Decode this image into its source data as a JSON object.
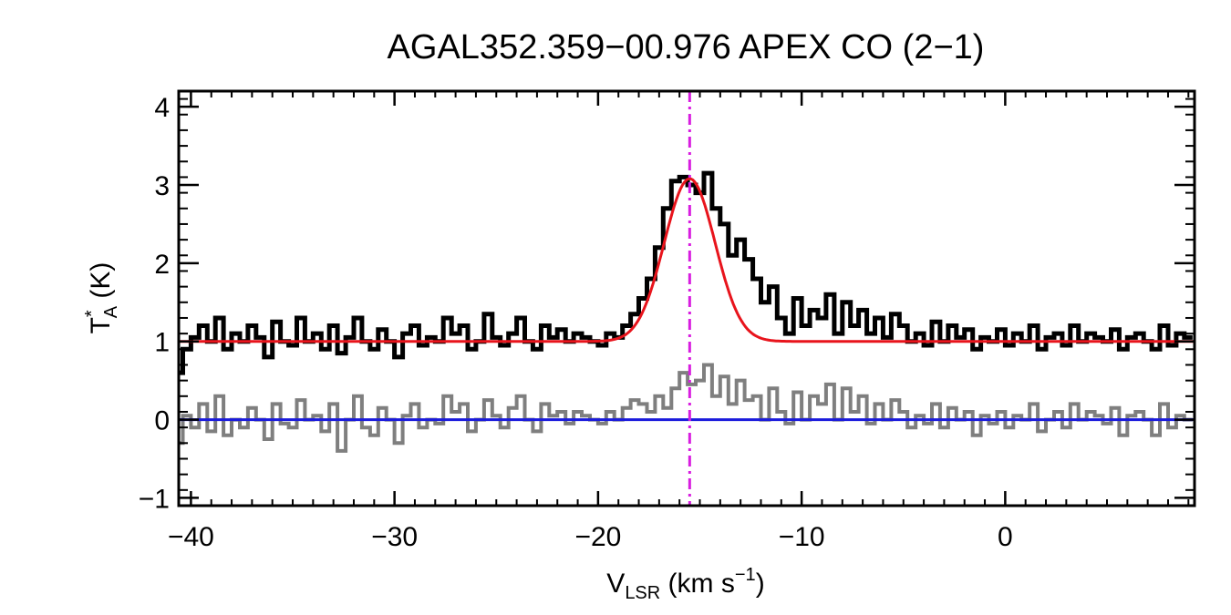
{
  "chart_data": {
    "type": "line",
    "title": "AGAL352.359−00.976  APEX CO (2−1)",
    "xlabel": {
      "main": "V",
      "sub": "LSR",
      "rest": " (km s",
      "sup": "−1",
      "close": ")"
    },
    "ylabel": {
      "main": "T",
      "sup": "*",
      "sub": "A",
      "rest": " (K)"
    },
    "xlim": [
      -40.6,
      9.3
    ],
    "ylim": [
      -1.1,
      4.2
    ],
    "x_ticks": [
      -40,
      -30,
      -20,
      -10,
      0
    ],
    "x_tick_labels": [
      "−40",
      "−30",
      "−20",
      "−10",
      "0"
    ],
    "y_ticks": [
      -1,
      0,
      1,
      2,
      3,
      4
    ],
    "y_tick_labels": [
      "−1",
      "0",
      "1",
      "2",
      "3",
      "4"
    ],
    "vline_x": -15.5,
    "baseline_y": 0,
    "fit": {
      "offset": 1.0,
      "amplitude": 2.08,
      "center": -15.5,
      "sigma": 1.25
    },
    "colors": {
      "spectrum": "#000000",
      "residual": "#7f7f7f",
      "fit": "#e8141c",
      "baseline": "#1a1adc",
      "vline": "#d81ee0"
    },
    "series": [
      {
        "role": "spectrum",
        "x": [
          -40.6,
          -40.2,
          -39.8,
          -39.4,
          -39.0,
          -38.6,
          -38.2,
          -37.8,
          -37.4,
          -37.0,
          -36.6,
          -36.2,
          -35.8,
          -35.4,
          -35.0,
          -34.6,
          -34.2,
          -33.8,
          -33.4,
          -33.0,
          -32.6,
          -32.2,
          -31.8,
          -31.4,
          -31.0,
          -30.6,
          -30.2,
          -29.8,
          -29.4,
          -29.0,
          -28.6,
          -28.2,
          -27.8,
          -27.4,
          -27.0,
          -26.6,
          -26.2,
          -25.8,
          -25.4,
          -25.0,
          -24.6,
          -24.2,
          -23.8,
          -23.4,
          -23.0,
          -22.6,
          -22.2,
          -21.8,
          -21.4,
          -21.0,
          -20.6,
          -20.2,
          -19.8,
          -19.4,
          -19.0,
          -18.6,
          -18.2,
          -17.8,
          -17.4,
          -17.0,
          -16.6,
          -16.2,
          -15.8,
          -15.4,
          -15.0,
          -14.6,
          -14.2,
          -13.8,
          -13.4,
          -13.0,
          -12.6,
          -12.2,
          -11.8,
          -11.4,
          -11.0,
          -10.6,
          -10.2,
          -9.8,
          -9.4,
          -9.0,
          -8.6,
          -8.2,
          -7.8,
          -7.4,
          -7.0,
          -6.6,
          -6.2,
          -5.8,
          -5.4,
          -5.0,
          -4.6,
          -4.2,
          -3.8,
          -3.4,
          -3.0,
          -2.6,
          -2.2,
          -1.8,
          -1.4,
          -1.0,
          -0.6,
          -0.2,
          0.2,
          0.6,
          1.0,
          1.4,
          1.8,
          2.2,
          2.6,
          3.0,
          3.4,
          3.8,
          4.2,
          4.6,
          5.0,
          5.4,
          5.8,
          6.2,
          6.6,
          7.0,
          7.4,
          7.8,
          8.2,
          8.6,
          9.0
        ],
        "y": [
          0.6,
          0.9,
          1.05,
          1.2,
          1.0,
          1.3,
          0.9,
          1.1,
          1.0,
          1.2,
          1.05,
          0.8,
          1.25,
          1.0,
          0.95,
          1.3,
          1.0,
          1.1,
          0.9,
          1.2,
          0.85,
          1.05,
          1.3,
          1.0,
          0.9,
          1.15,
          1.0,
          0.8,
          1.1,
          1.2,
          0.95,
          1.05,
          1.0,
          1.3,
          1.1,
          1.2,
          0.9,
          1.0,
          1.35,
          1.05,
          0.95,
          1.1,
          1.3,
          1.0,
          0.9,
          1.2,
          1.05,
          1.15,
          1.0,
          1.1,
          1.05,
          1.0,
          0.95,
          1.1,
          1.05,
          1.2,
          1.35,
          1.55,
          1.8,
          2.2,
          2.7,
          3.05,
          3.1,
          3.0,
          2.9,
          3.15,
          2.7,
          2.5,
          2.1,
          2.3,
          2.05,
          1.8,
          1.5,
          1.7,
          1.3,
          1.1,
          1.55,
          1.2,
          1.4,
          1.3,
          1.6,
          1.1,
          1.5,
          1.2,
          1.4,
          1.1,
          1.3,
          1.05,
          1.35,
          1.2,
          1.0,
          1.1,
          0.95,
          1.25,
          1.0,
          1.2,
          1.05,
          1.15,
          0.9,
          1.05,
          1.0,
          1.15,
          0.95,
          1.1,
          1.0,
          1.2,
          0.9,
          1.05,
          1.1,
          0.95,
          1.2,
          1.0,
          1.1,
          1.05,
          1.0,
          1.15,
          0.9,
          1.05,
          1.1,
          1.0,
          0.9,
          1.2,
          0.95,
          1.1,
          1.05
        ]
      },
      {
        "role": "residual",
        "x": [
          -40.6,
          -40.2,
          -39.8,
          -39.4,
          -39.0,
          -38.6,
          -38.2,
          -37.8,
          -37.4,
          -37.0,
          -36.6,
          -36.2,
          -35.8,
          -35.4,
          -35.0,
          -34.6,
          -34.2,
          -33.8,
          -33.4,
          -33.0,
          -32.6,
          -32.2,
          -31.8,
          -31.4,
          -31.0,
          -30.6,
          -30.2,
          -29.8,
          -29.4,
          -29.0,
          -28.6,
          -28.2,
          -27.8,
          -27.4,
          -27.0,
          -26.6,
          -26.2,
          -25.8,
          -25.4,
          -25.0,
          -24.6,
          -24.2,
          -23.8,
          -23.4,
          -23.0,
          -22.6,
          -22.2,
          -21.8,
          -21.4,
          -21.0,
          -20.6,
          -20.2,
          -19.8,
          -19.4,
          -19.0,
          -18.6,
          -18.2,
          -17.8,
          -17.4,
          -17.0,
          -16.6,
          -16.2,
          -15.8,
          -15.4,
          -15.0,
          -14.6,
          -14.2,
          -13.8,
          -13.4,
          -13.0,
          -12.6,
          -12.2,
          -11.8,
          -11.4,
          -11.0,
          -10.6,
          -10.2,
          -9.8,
          -9.4,
          -9.0,
          -8.6,
          -8.2,
          -7.8,
          -7.4,
          -7.0,
          -6.6,
          -6.2,
          -5.8,
          -5.4,
          -5.0,
          -4.6,
          -4.2,
          -3.8,
          -3.4,
          -3.0,
          -2.6,
          -2.2,
          -1.8,
          -1.4,
          -1.0,
          -0.6,
          -0.2,
          0.2,
          0.6,
          1.0,
          1.4,
          1.8,
          2.2,
          2.6,
          3.0,
          3.4,
          3.8,
          4.2,
          4.6,
          5.0,
          5.4,
          5.8,
          6.2,
          6.6,
          7.0,
          7.4,
          7.8,
          8.2,
          8.6,
          9.0
        ],
        "y": [
          -0.3,
          0.05,
          -0.1,
          0.2,
          -0.15,
          0.3,
          -0.2,
          0.0,
          -0.1,
          0.15,
          0.0,
          -0.25,
          0.2,
          -0.05,
          -0.1,
          0.25,
          0.0,
          0.05,
          -0.15,
          0.2,
          -0.4,
          0.0,
          0.3,
          -0.1,
          -0.2,
          0.15,
          0.0,
          -0.3,
          0.05,
          0.2,
          -0.1,
          0.0,
          -0.05,
          0.3,
          0.1,
          0.2,
          -0.15,
          0.0,
          0.25,
          0.05,
          -0.1,
          0.15,
          0.3,
          0.0,
          -0.15,
          0.2,
          0.05,
          0.1,
          -0.05,
          0.1,
          0.05,
          0.0,
          -0.05,
          0.1,
          0.0,
          0.15,
          0.25,
          0.2,
          0.1,
          0.3,
          0.15,
          0.4,
          0.6,
          0.45,
          0.5,
          0.7,
          0.3,
          0.55,
          0.2,
          0.5,
          0.25,
          0.3,
          0.0,
          0.4,
          0.1,
          -0.05,
          0.35,
          0.0,
          0.3,
          0.2,
          0.45,
          0.0,
          0.4,
          0.1,
          0.3,
          -0.05,
          0.2,
          0.0,
          0.25,
          0.1,
          -0.1,
          0.05,
          -0.05,
          0.2,
          -0.1,
          0.15,
          0.0,
          0.1,
          -0.2,
          0.05,
          -0.05,
          0.1,
          -0.1,
          0.05,
          0.0,
          0.2,
          -0.15,
          0.0,
          0.1,
          -0.1,
          0.2,
          0.0,
          0.1,
          0.05,
          -0.05,
          0.15,
          -0.2,
          0.05,
          0.1,
          0.0,
          -0.2,
          0.2,
          -0.1,
          0.05,
          0.0
        ]
      }
    ]
  }
}
